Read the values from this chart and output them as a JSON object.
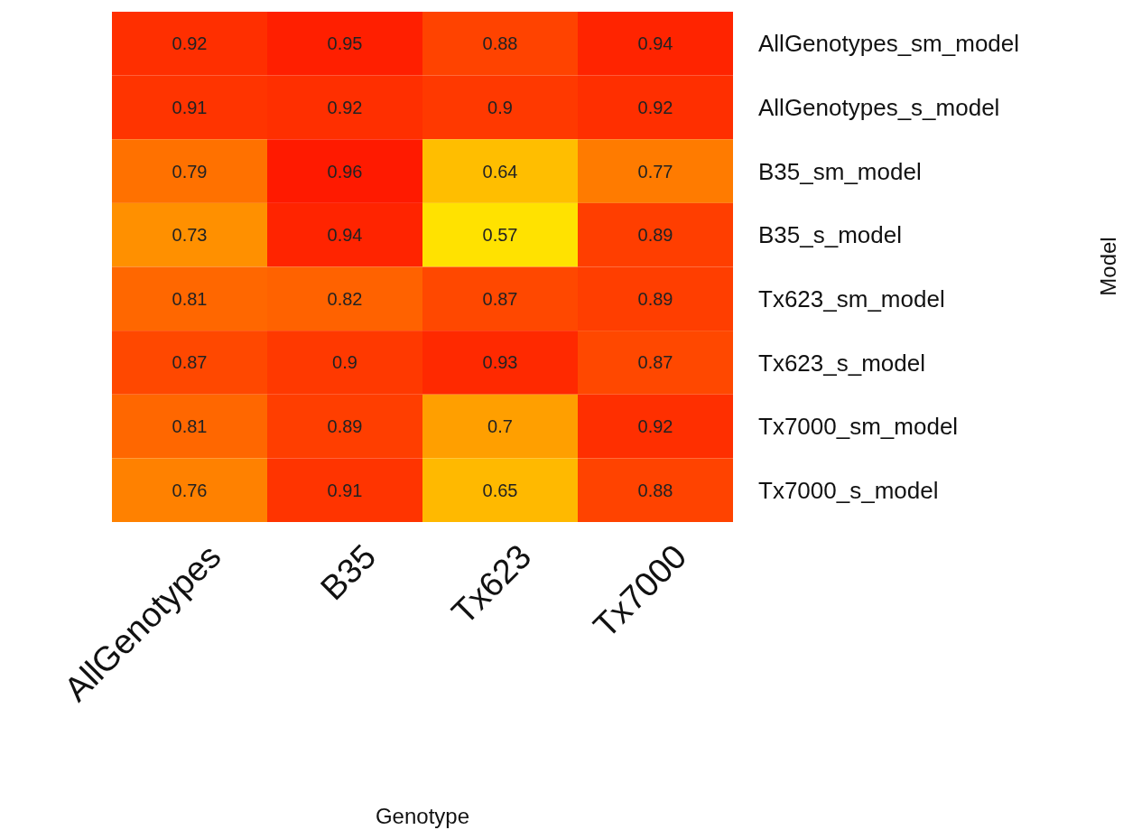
{
  "chart_data": {
    "type": "heatmap",
    "xlabel": "Genotype",
    "ylabel": "Model",
    "categories": [
      "AllGenotypes",
      "B35",
      "Tx623",
      "Tx7000"
    ],
    "y_categories": [
      "AllGenotypes_sm_model",
      "AllGenotypes_s_model",
      "B35_sm_model",
      "B35_s_model",
      "Tx623_sm_model",
      "Tx623_s_model",
      "Tx7000_sm_model",
      "Tx7000_s_model"
    ],
    "cells": [
      [
        0.92,
        0.95,
        0.88,
        0.94
      ],
      [
        0.91,
        0.92,
        0.9,
        0.92
      ],
      [
        0.79,
        0.96,
        0.64,
        0.77
      ],
      [
        0.73,
        0.94,
        0.57,
        0.89
      ],
      [
        0.81,
        0.82,
        0.87,
        0.89
      ],
      [
        0.87,
        0.9,
        0.93,
        0.87
      ],
      [
        0.81,
        0.89,
        0.7,
        0.92
      ],
      [
        0.76,
        0.91,
        0.65,
        0.88
      ]
    ],
    "data_labels": true
  }
}
